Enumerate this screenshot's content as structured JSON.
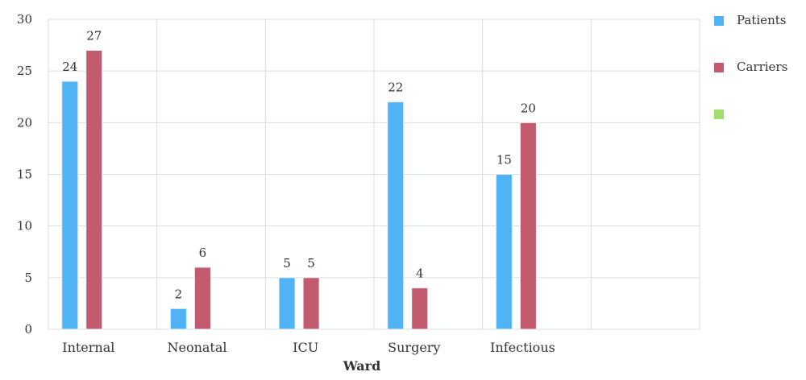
{
  "chart_data": {
    "type": "bar",
    "categories": [
      "Internal",
      "Neonatal",
      "ICU",
      "Surgery",
      "Infectious",
      ""
    ],
    "series": [
      {
        "name": "Patients",
        "color": "#4fb3f6",
        "values": [
          24,
          2,
          5,
          22,
          15,
          null
        ]
      },
      {
        "name": "Carriers",
        "color": "#c25b6e",
        "values": [
          27,
          6,
          5,
          4,
          20,
          null
        ]
      },
      {
        "name": "",
        "color": "#9ee06a",
        "values": [
          null,
          null,
          null,
          null,
          null,
          null
        ]
      }
    ],
    "xlabel": "Ward",
    "ylabel": "",
    "ylim": [
      0,
      30
    ],
    "yticks": [
      0,
      5,
      10,
      15,
      20,
      25,
      30
    ],
    "data_labels": true,
    "grid": true,
    "legend": "right"
  }
}
